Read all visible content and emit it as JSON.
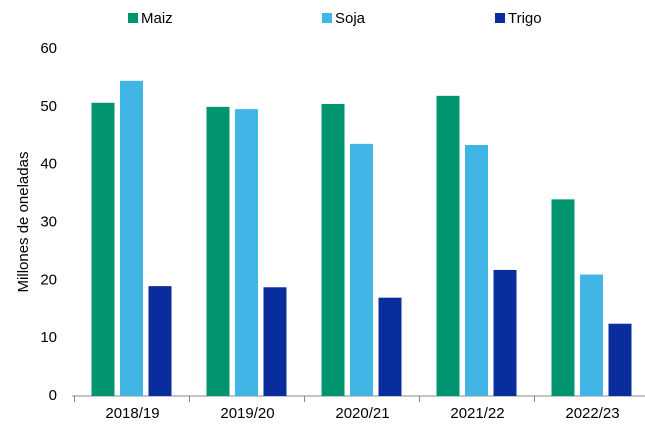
{
  "chart_data": {
    "type": "bar",
    "y_label": "Millones de oneladas",
    "categories": [
      "2018/19",
      "2019/20",
      "2020/21",
      "2021/22",
      "2022/23"
    ],
    "series": [
      {
        "name": "Maiz",
        "color": "#00956f",
        "values": [
          50.7,
          50,
          50.5,
          51.9,
          34
        ]
      },
      {
        "name": "Soja",
        "color": "#41b6e6",
        "values": [
          54.5,
          49.6,
          43.6,
          43.4,
          21
        ]
      },
      {
        "name": "Trigo",
        "color": "#0a2d9e",
        "values": [
          19,
          18.8,
          17,
          21.8,
          12.5
        ]
      }
    ],
    "ylim": [
      0,
      60
    ],
    "yticks": [
      0,
      10,
      20,
      30,
      40,
      50,
      60
    ],
    "grid": false,
    "legend": "top"
  }
}
